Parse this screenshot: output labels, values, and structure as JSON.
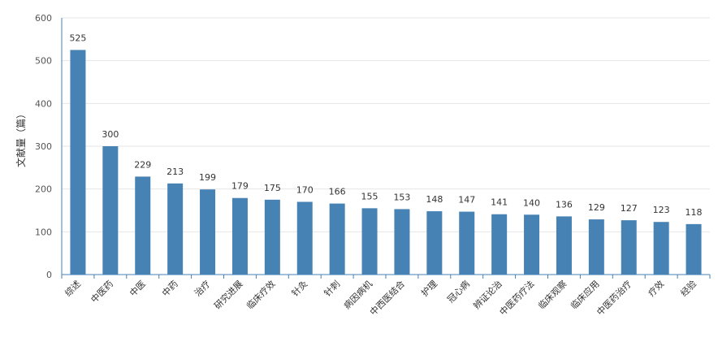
{
  "chart_data": {
    "type": "bar",
    "ylabel": "文献量（篇）",
    "xlabel": "",
    "ylim": [
      0,
      600
    ],
    "yticks": [
      0,
      100,
      200,
      300,
      400,
      500,
      600
    ],
    "grid": true,
    "bar_color": "#4682b4",
    "categories": [
      "综述",
      "中医药",
      "中医",
      "中药",
      "治疗",
      "研究进展",
      "临床疗效",
      "针灸",
      "针刺",
      "病因病机",
      "中西医结合",
      "护理",
      "冠心病",
      "辨证论治",
      "中医药疗法",
      "临床观察",
      "临床应用",
      "中医药治疗",
      "疗效",
      "经验"
    ],
    "values": [
      525,
      300,
      229,
      213,
      199,
      179,
      175,
      170,
      166,
      155,
      153,
      148,
      147,
      141,
      140,
      136,
      129,
      127,
      123,
      118
    ]
  }
}
